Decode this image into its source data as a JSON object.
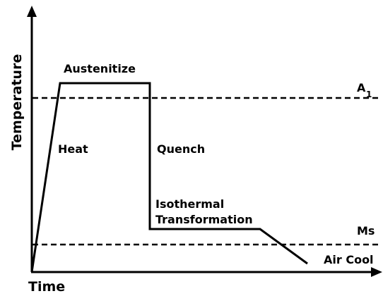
{
  "axes": {
    "y_label": "Temperature",
    "x_label": "Time"
  },
  "levels": {
    "a1": {
      "label": "A",
      "subscript": "1"
    },
    "ms": "Ms"
  },
  "stages": {
    "austenitize": "Austenitize",
    "heat": "Heat",
    "quench": "Quench",
    "isothermal": [
      "Isothermal",
      "Transformation"
    ],
    "air_cool": "Air Cool"
  }
}
